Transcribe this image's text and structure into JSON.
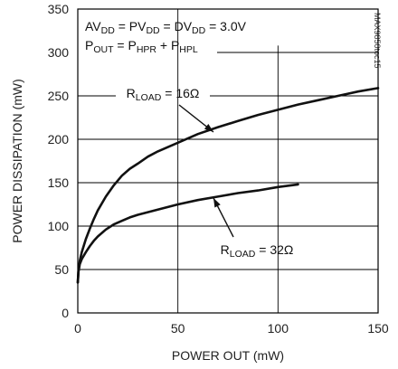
{
  "chart_data": {
    "type": "line",
    "xlabel": "POWER OUT (mW)",
    "ylabel": "POWER DISSIPATION (mW)",
    "xlim": [
      0,
      150
    ],
    "ylim": [
      0,
      350
    ],
    "xticks": [
      0,
      50,
      100,
      150
    ],
    "yticks": [
      0,
      50,
      100,
      150,
      200,
      250,
      300,
      350
    ],
    "grid": true,
    "conditions": [
      {
        "parts": [
          {
            "t": "AV",
            "sub": false
          },
          {
            "t": "DD",
            "sub": true
          },
          {
            "t": " = PV",
            "sub": false
          },
          {
            "t": "DD",
            "sub": true
          },
          {
            "t": " = DV",
            "sub": false
          },
          {
            "t": "DD",
            "sub": true
          },
          {
            "t": " = 3.0V",
            "sub": false
          }
        ]
      },
      {
        "parts": [
          {
            "t": "P",
            "sub": false
          },
          {
            "t": "OUT",
            "sub": true
          },
          {
            "t": " = P",
            "sub": false
          },
          {
            "t": "HPR",
            "sub": true
          },
          {
            "t": " + P",
            "sub": false
          },
          {
            "t": "HPL",
            "sub": true
          }
        ]
      }
    ],
    "figure_code": "MAX9850toc15",
    "series": [
      {
        "name": "RLOAD = 16Ω",
        "label_parts": [
          {
            "t": "R",
            "sub": false
          },
          {
            "t": "LOAD",
            "sub": true
          },
          {
            "t": " = 16Ω",
            "sub": false
          }
        ],
        "x": [
          0,
          0.3,
          1,
          2,
          4,
          6,
          8,
          10,
          14,
          18,
          22,
          26,
          30,
          35,
          40,
          50,
          60,
          70,
          80,
          90,
          100,
          110,
          120,
          130,
          140,
          150
        ],
        "y": [
          35,
          48,
          60,
          70,
          85,
          97,
          108,
          118,
          134,
          147,
          158,
          166,
          172,
          180,
          186,
          196,
          206,
          214,
          221,
          228,
          234,
          240,
          245,
          250,
          255,
          259
        ]
      },
      {
        "name": "RLOAD = 32Ω",
        "label_parts": [
          {
            "t": "R",
            "sub": false
          },
          {
            "t": "LOAD",
            "sub": true
          },
          {
            "t": " = 32Ω",
            "sub": false
          }
        ],
        "x": [
          0,
          0.3,
          1,
          2,
          4,
          6,
          8,
          10,
          14,
          18,
          22,
          26,
          30,
          40,
          50,
          60,
          70,
          80,
          90,
          100,
          110
        ],
        "y": [
          35,
          47,
          56,
          62,
          70,
          77,
          83,
          88,
          96,
          102,
          106,
          110,
          113,
          119,
          125,
          130,
          134,
          138,
          141,
          145,
          148
        ]
      }
    ]
  }
}
